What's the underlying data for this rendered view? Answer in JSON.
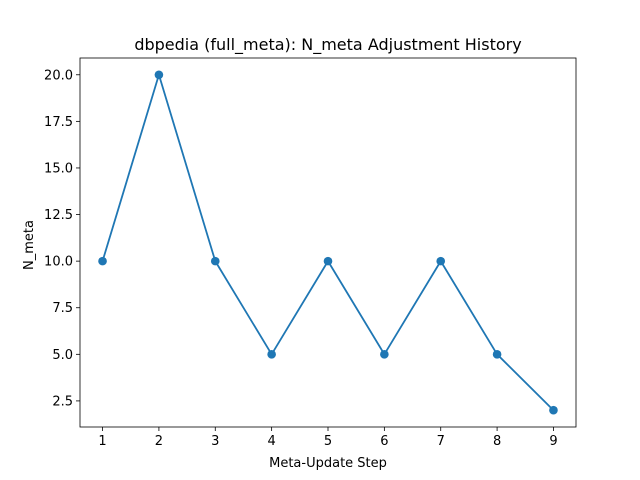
{
  "chart_data": {
    "type": "line",
    "title": "dbpedia (full_meta): N_meta Adjustment History",
    "xlabel": "Meta-Update Step",
    "ylabel": "N_meta",
    "x": [
      1,
      2,
      3,
      4,
      5,
      6,
      7,
      8,
      9
    ],
    "series": [
      {
        "values": [
          10,
          20,
          10,
          5,
          10,
          5,
          10,
          5,
          2
        ],
        "color": "#1f77b4",
        "marker": "circle"
      }
    ],
    "xlim": [
      0.6,
      9.4
    ],
    "ylim": [
      1.1,
      20.9
    ],
    "x_ticks": [
      "1",
      "2",
      "3",
      "4",
      "5",
      "6",
      "7",
      "8",
      "9"
    ],
    "y_ticks": [
      "2.5",
      "5.0",
      "7.5",
      "10.0",
      "12.5",
      "15.0",
      "17.5",
      "20.0"
    ],
    "grid": false,
    "legend": "none"
  }
}
